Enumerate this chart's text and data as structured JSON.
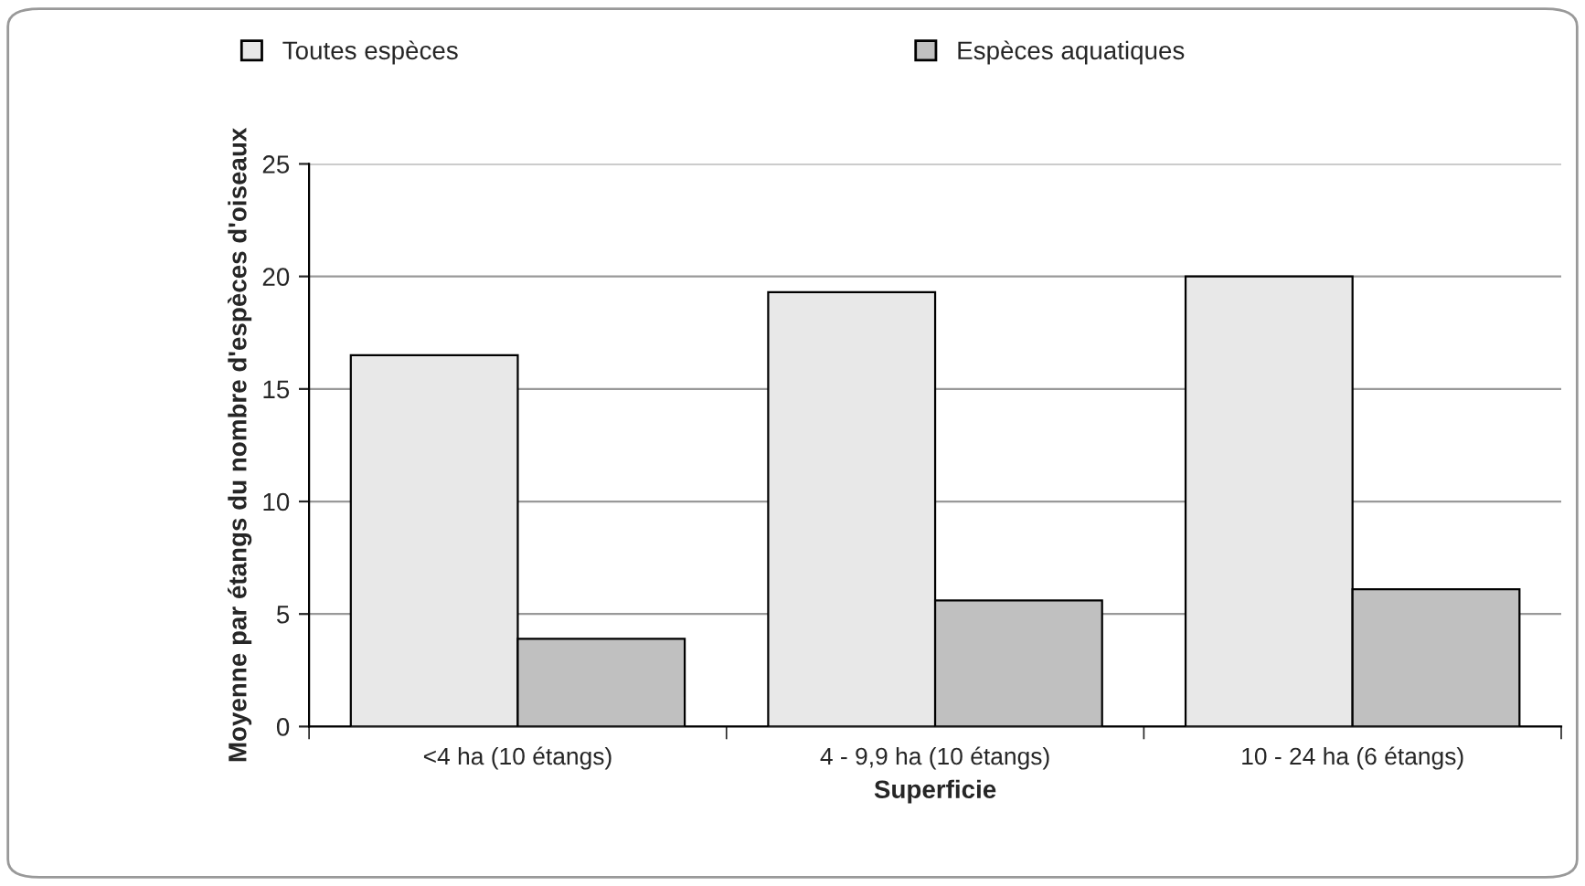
{
  "chart_data": {
    "type": "bar",
    "xlabel": "Superficie",
    "ylabel": "Moyenne par étangs du nombre d'espèces d'oiseaux",
    "categories": [
      "<4 ha (10 étangs)",
      "4 - 9,9 ha (10 étangs)",
      "10 - 24 ha (6 étangs)"
    ],
    "series": [
      {
        "name": "Toutes espèces",
        "color": "#e8e8e8",
        "values": [
          16.5,
          19.3,
          20.0
        ]
      },
      {
        "name": "Espèces aquatiques",
        "color": "#c0c0c0",
        "values": [
          3.9,
          5.6,
          6.1
        ]
      }
    ],
    "ylim": [
      0,
      25
    ],
    "yticks": [
      0,
      5,
      10,
      15,
      20,
      25
    ],
    "grid": "y",
    "legend": "top"
  }
}
